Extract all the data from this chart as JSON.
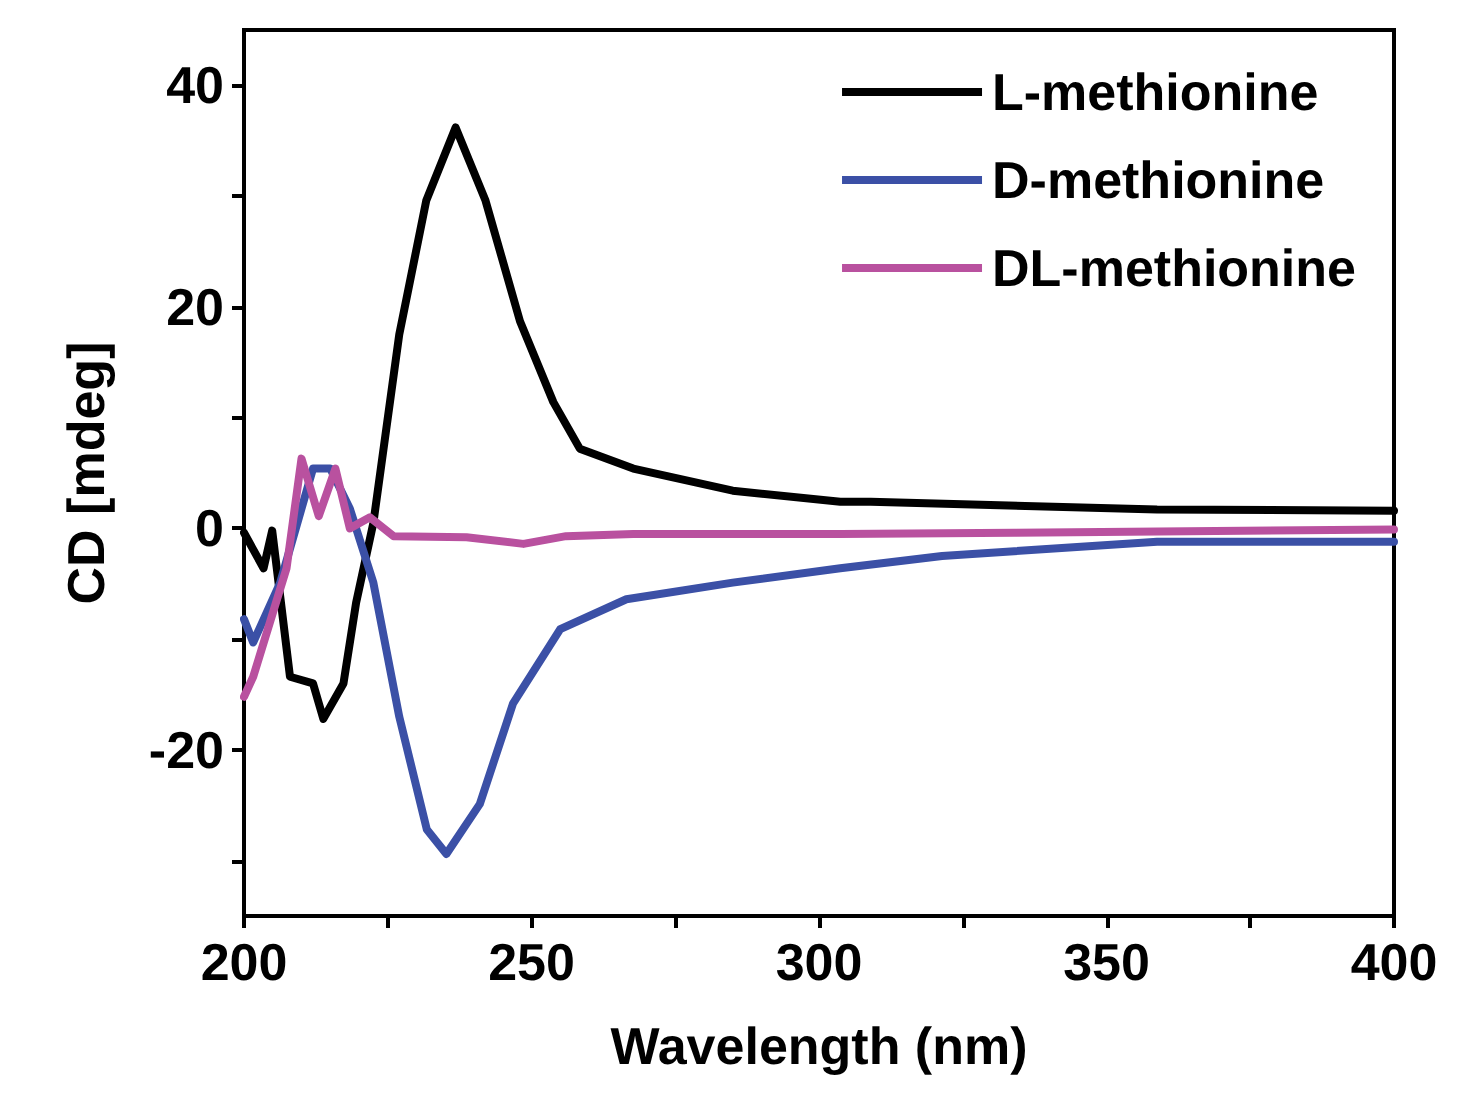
{
  "chart_data": {
    "type": "line",
    "xlabel": "Wavelength (nm)",
    "ylabel": "CD [mdeg]",
    "xlim": [
      200,
      400
    ],
    "ylim": [
      -35,
      45
    ],
    "xticks": [
      200,
      {
        "value": 225,
        "label": null
      },
      250,
      {
        "value": 275,
        "label": null
      },
      300,
      {
        "value": 325,
        "label": null
      },
      350,
      {
        "value": 375,
        "label": null
      },
      400
    ],
    "yticks": [
      {
        "value": -30,
        "label": null
      },
      -20,
      {
        "value": -10,
        "label": null
      },
      0,
      {
        "value": 10,
        "label": null
      },
      20,
      {
        "value": 30,
        "label": null
      },
      40
    ],
    "grid": false,
    "legend": "top right",
    "marker": "none",
    "line_style": "solid",
    "series": [
      {
        "name": "L-methionine",
        "color": "#000000",
        "x": [
          200,
          203.4,
          204.9,
          208,
          212,
          213.8,
          217.3,
          219.5,
          222.5,
          227,
          231.7,
          236.8,
          242,
          248,
          253.8,
          258.4,
          267.7,
          285,
          303.7,
          309,
          358.8,
          400
        ],
        "values": [
          -0.4,
          -3.6,
          -0.2,
          -13.4,
          -14,
          -17.2,
          -14,
          -6.7,
          0.5,
          17.5,
          29.6,
          36.2,
          29.6,
          18.7,
          11.4,
          7.2,
          5.4,
          3.4,
          2.4,
          2.4,
          1.7,
          1.6
        ]
      },
      {
        "name": "D-methionine",
        "color": "#3b50a6",
        "x": [
          200,
          201.6,
          206.3,
          212,
          215,
          218.4,
          222.5,
          227,
          231.8,
          235.2,
          241,
          246.8,
          255,
          266.5,
          285,
          303.7,
          321.4,
          358.8,
          400
        ],
        "values": [
          -8.2,
          -10.3,
          -4.9,
          5.4,
          5.4,
          1.8,
          -4.9,
          -17,
          -27.2,
          -29.4,
          -24.9,
          -15.8,
          -9.1,
          -6.4,
          -4.9,
          -3.6,
          -2.5,
          -1.2,
          -1.2
        ]
      },
      {
        "name": "DL-methionine",
        "color": "#b9519f",
        "x": [
          200,
          201.6,
          207.4,
          210,
          213,
          215.9,
          218.4,
          221.9,
          226,
          238.7,
          248.6,
          256,
          267.7,
          303.7,
          334,
          400
        ],
        "values": [
          -15.2,
          -13.4,
          -3.6,
          6.3,
          1.1,
          5.4,
          0,
          1,
          -0.7,
          -0.8,
          -1.4,
          -0.7,
          -0.5,
          -0.5,
          -0.4,
          -0.1
        ]
      }
    ]
  }
}
